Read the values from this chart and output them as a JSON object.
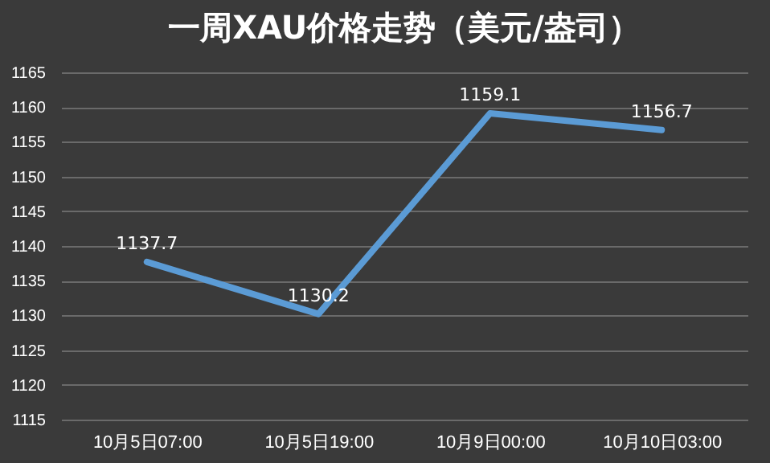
{
  "chart_data": {
    "type": "line",
    "title": "一周XAU价格走势（美元/盎司）",
    "categories": [
      "10月5日07:00",
      "10月5日19:00",
      "10月9日00:00",
      "10月10日03:00"
    ],
    "series": [
      {
        "color": "#5b9bd5",
        "values": [
          1137.7,
          1130.2,
          1159.1,
          1156.7
        ]
      }
    ],
    "ylim": [
      1115,
      1165
    ],
    "yticks": [
      1115,
      1120,
      1125,
      1130,
      1135,
      1140,
      1145,
      1150,
      1155,
      1160,
      1165
    ],
    "grid": "y",
    "data_labels": true,
    "legend": false,
    "marker": "none",
    "line_style": "solid"
  }
}
